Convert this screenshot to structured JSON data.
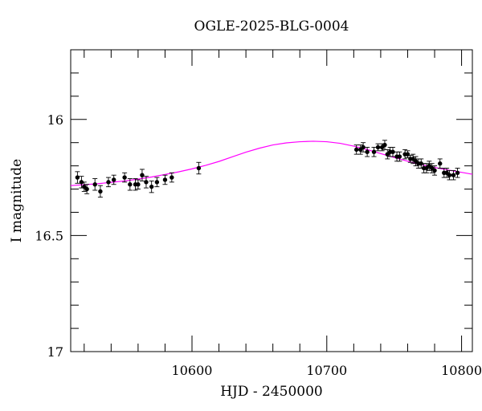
{
  "chart_data": {
    "type": "scatter",
    "title": "OGLE-2025-BLG-0004",
    "xlabel": "HJD - 2450000",
    "ylabel": "I magnitude",
    "xlim": [
      10510,
      10808
    ],
    "ylim": [
      17,
      15.7
    ],
    "y_inverted": true,
    "grid": false,
    "legend": "none",
    "x_major_ticks": [
      10600,
      10700,
      10800
    ],
    "x_minor_ticks": [
      10520,
      10540,
      10560,
      10580,
      10620,
      10640,
      10660,
      10680,
      10720,
      10740,
      10760,
      10780
    ],
    "y_major_ticks": [
      16,
      16.5,
      17
    ],
    "y_minor_ticks": [
      15.8,
      15.9,
      16.1,
      16.2,
      16.3,
      16.4,
      16.6,
      16.7,
      16.8,
      16.9
    ],
    "x_tick_labels": [
      "10600",
      "10700",
      "10800"
    ],
    "y_tick_labels": [
      "16",
      "16.5",
      "17"
    ],
    "colors": {
      "points": "#000000",
      "model": "#ff00ff",
      "axes": "#000000"
    },
    "series": [
      {
        "kind": "points-with-error-bars",
        "x": [
          10515,
          10518,
          10520,
          10522,
          10528,
          10532,
          10538,
          10542,
          10550,
          10554,
          10558,
          10560,
          10563,
          10566,
          10570,
          10574,
          10580,
          10585,
          10605,
          10722,
          10725,
          10727,
          10730,
          10735,
          10738,
          10741,
          10743,
          10745,
          10747,
          10749,
          10752,
          10754,
          10758,
          10760,
          10762,
          10764,
          10766,
          10768,
          10770,
          10772,
          10774,
          10776,
          10778,
          10780,
          10784,
          10787,
          10789,
          10791,
          10794,
          10797
        ],
        "y": [
          16.25,
          16.27,
          16.29,
          16.3,
          16.28,
          16.31,
          16.27,
          16.26,
          16.25,
          16.28,
          16.28,
          16.28,
          16.24,
          16.27,
          16.29,
          16.27,
          16.26,
          16.25,
          16.21,
          16.13,
          16.13,
          16.12,
          16.14,
          16.14,
          16.12,
          16.12,
          16.11,
          16.15,
          16.14,
          16.14,
          16.16,
          16.16,
          16.15,
          16.15,
          16.17,
          16.17,
          16.18,
          16.19,
          16.19,
          16.21,
          16.21,
          16.2,
          16.21,
          16.22,
          16.19,
          16.23,
          16.23,
          16.24,
          16.24,
          16.23
        ],
        "yerr": [
          0.025,
          0.025,
          0.02,
          0.02,
          0.025,
          0.025,
          0.02,
          0.02,
          0.02,
          0.025,
          0.025,
          0.02,
          0.025,
          0.025,
          0.025,
          0.02,
          0.02,
          0.02,
          0.025,
          0.02,
          0.02,
          0.02,
          0.02,
          0.02,
          0.015,
          0.015,
          0.02,
          0.02,
          0.02,
          0.02,
          0.02,
          0.02,
          0.02,
          0.015,
          0.015,
          0.02,
          0.02,
          0.02,
          0.02,
          0.02,
          0.02,
          0.02,
          0.02,
          0.02,
          0.02,
          0.02,
          0.02,
          0.02,
          0.02,
          0.02
        ]
      },
      {
        "kind": "model-curve",
        "x": [
          10510,
          10520,
          10530,
          10540,
          10550,
          10560,
          10570,
          10580,
          10590,
          10600,
          10610,
          10620,
          10630,
          10640,
          10650,
          10660,
          10670,
          10680,
          10690,
          10700,
          10710,
          10720,
          10730,
          10740,
          10750,
          10760,
          10770,
          10780,
          10790,
          10800,
          10808
        ],
        "y": [
          16.285,
          16.281,
          16.277,
          16.271,
          16.265,
          16.257,
          16.248,
          16.237,
          16.226,
          16.213,
          16.198,
          16.181,
          16.161,
          16.141,
          16.124,
          16.11,
          16.101,
          16.096,
          16.094,
          16.096,
          16.103,
          16.115,
          16.13,
          16.147,
          16.164,
          16.18,
          16.195,
          16.207,
          16.218,
          16.228,
          16.236
        ]
      }
    ]
  }
}
